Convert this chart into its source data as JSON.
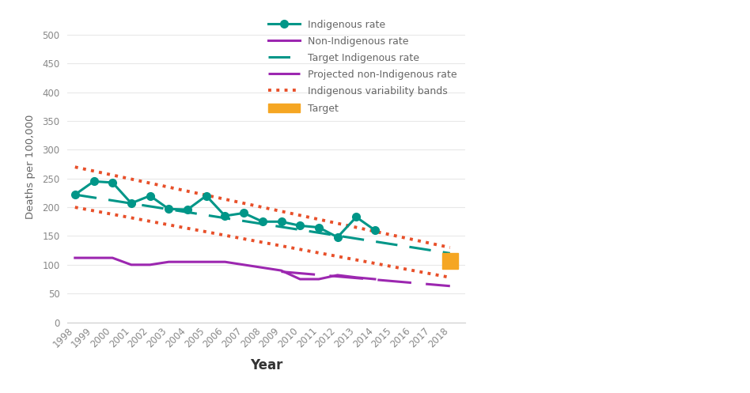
{
  "indigenous_years": [
    1998,
    1999,
    2000,
    2001,
    2002,
    2003,
    2004,
    2005,
    2006,
    2007,
    2008,
    2009,
    2010,
    2011,
    2012,
    2013,
    2014
  ],
  "indigenous_values": [
    222,
    245,
    243,
    207,
    220,
    197,
    196,
    220,
    185,
    190,
    175,
    175,
    168,
    165,
    148,
    183,
    160
  ],
  "non_indigenous_years": [
    1998,
    1999,
    2000,
    2001,
    2002,
    2003,
    2004,
    2005,
    2006,
    2007,
    2008,
    2009,
    2010,
    2011,
    2012,
    2013,
    2014
  ],
  "non_indigenous_values": [
    112,
    112,
    112,
    100,
    100,
    105,
    105,
    105,
    105,
    100,
    95,
    90,
    75,
    75,
    82,
    78,
    75
  ],
  "target_indigenous_years": [
    1998,
    2018
  ],
  "target_indigenous_values": [
    222,
    120
  ],
  "projected_non_indigenous_years": [
    2009,
    2018
  ],
  "projected_non_indigenous_values": [
    88,
    63
  ],
  "variability_upper_years": [
    1998,
    2018
  ],
  "variability_upper_values": [
    270,
    130
  ],
  "variability_lower_years": [
    1998,
    2018
  ],
  "variability_lower_values": [
    200,
    78
  ],
  "target_point_x": 2018,
  "target_point_y": 107,
  "teal_color": "#009688",
  "purple_color": "#9C27B0",
  "orange_dotted_color": "#E8502A",
  "target_color": "#F5A623",
  "ylabel": "Deaths per 100,000",
  "xlabel": "Year",
  "ylim": [
    0,
    540
  ],
  "yticks": [
    0,
    50,
    100,
    150,
    200,
    250,
    300,
    350,
    400,
    450,
    500
  ],
  "xlim_min": 1997.6,
  "xlim_max": 2018.8,
  "xticks": [
    1998,
    1999,
    2000,
    2001,
    2002,
    2003,
    2004,
    2005,
    2006,
    2007,
    2008,
    2009,
    2010,
    2011,
    2012,
    2013,
    2014,
    2015,
    2016,
    2017,
    2018
  ],
  "legend_labels": [
    "Indigenous rate",
    "Non-Indigenous rate",
    "Target Indigenous rate",
    "Projected non-Indigenous rate",
    "Indigenous variability bands",
    "Target"
  ],
  "background_color": "#FFFFFF",
  "spine_color": "#CCCCCC",
  "tick_color": "#888888",
  "grid_color": "#E8E8E8",
  "label_color": "#666666"
}
